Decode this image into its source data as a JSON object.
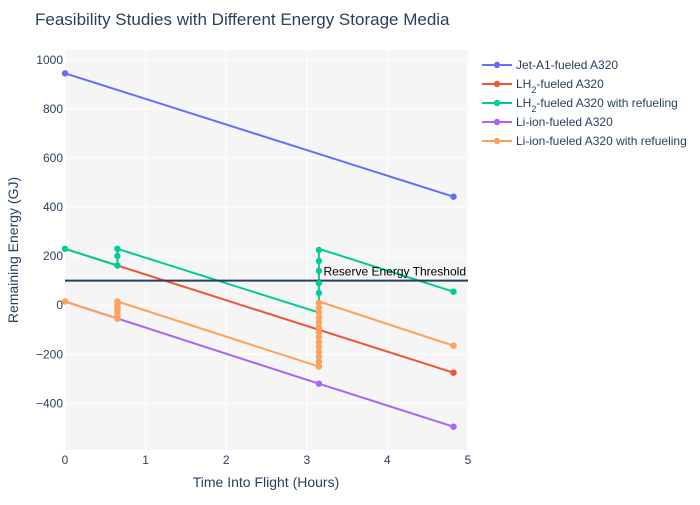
{
  "chart_data": {
    "type": "line",
    "title": "Feasibility Studies with Different Energy Storage Media",
    "xlabel": "Time Into Flight (Hours)",
    "ylabel": "Remaining Energy (GJ)",
    "xlim": [
      0,
      5
    ],
    "ylim": [
      -590,
      1040
    ],
    "x_ticks": [
      0,
      1,
      2,
      3,
      4,
      5
    ],
    "y_ticks": [
      -400,
      -200,
      0,
      200,
      400,
      600,
      800,
      1000
    ],
    "grid": true,
    "legend_position": "top-right outside",
    "reference_line": {
      "y": 100,
      "label": "Reserve Energy Threshold",
      "color": "#2a3f5f"
    },
    "series": [
      {
        "name": "Jet-A1-fueled A320",
        "name_base": "Jet-A1-fueled A320",
        "name_sub": "",
        "name_rest": "",
        "color": "#636efa",
        "points": [
          [
            0,
            945
          ],
          [
            4.82,
            442
          ]
        ],
        "markers": [
          [
            0,
            945
          ],
          [
            4.82,
            442
          ]
        ]
      },
      {
        "name": "LH2-fueled A320",
        "name_base": "LH",
        "name_sub": "2",
        "name_rest": "-fueled A320",
        "color": "#ef553b",
        "points": [
          [
            0,
            230
          ],
          [
            4.82,
            -275
          ]
        ],
        "markers": [
          [
            4.82,
            -275
          ]
        ]
      },
      {
        "name": "LH2-fueled A320 with refueling",
        "name_base": "LH",
        "name_sub": "2",
        "name_rest": "-fueled A320 with refueling",
        "color": "#00cc96",
        "points": [
          [
            0,
            230
          ],
          [
            0.65,
            162
          ],
          [
            0.65,
            230
          ],
          [
            3.15,
            -30
          ],
          [
            3.15,
            230
          ],
          [
            4.82,
            55
          ]
        ],
        "markers": [
          [
            0,
            230
          ],
          [
            0.65,
            162
          ],
          [
            0.65,
            200
          ],
          [
            0.65,
            230
          ],
          [
            3.15,
            50
          ],
          [
            3.15,
            90
          ],
          [
            3.15,
            140
          ],
          [
            3.15,
            180
          ],
          [
            3.15,
            225
          ],
          [
            4.82,
            55
          ]
        ]
      },
      {
        "name": "Li-ion-fueled A320",
        "name_base": "Li-ion-fueled A320",
        "name_sub": "",
        "name_rest": "",
        "color": "#ab63fa",
        "points": [
          [
            0,
            15
          ],
          [
            3.15,
            -320
          ],
          [
            4.82,
            -495
          ]
        ],
        "markers": [
          [
            3.15,
            -320
          ],
          [
            4.82,
            -495
          ]
        ]
      },
      {
        "name": "Li-ion-fueled A320 with refueling",
        "name_base": "Li-ion-fueled A320 with refueling",
        "name_sub": "",
        "name_rest": "",
        "color": "#ffa15a",
        "points": [
          [
            0,
            15
          ],
          [
            0.65,
            -55
          ],
          [
            0.65,
            15
          ],
          [
            3.15,
            -250
          ],
          [
            3.15,
            15
          ],
          [
            4.82,
            -165
          ]
        ],
        "markers": [
          [
            0,
            15
          ],
          [
            0.65,
            -55
          ],
          [
            0.65,
            -45
          ],
          [
            0.65,
            -35
          ],
          [
            0.65,
            -25
          ],
          [
            0.65,
            -15
          ],
          [
            0.65,
            -5
          ],
          [
            0.65,
            5
          ],
          [
            0.65,
            15
          ],
          [
            3.15,
            -250
          ],
          [
            3.15,
            -230
          ],
          [
            3.15,
            -210
          ],
          [
            3.15,
            -190
          ],
          [
            3.15,
            -170
          ],
          [
            3.15,
            -150
          ],
          [
            3.15,
            -130
          ],
          [
            3.15,
            -110
          ],
          [
            3.15,
            -90
          ],
          [
            3.15,
            -70
          ],
          [
            3.15,
            -50
          ],
          [
            3.15,
            -30
          ],
          [
            3.15,
            -10
          ],
          [
            3.15,
            10
          ],
          [
            4.82,
            -165
          ]
        ]
      }
    ]
  }
}
